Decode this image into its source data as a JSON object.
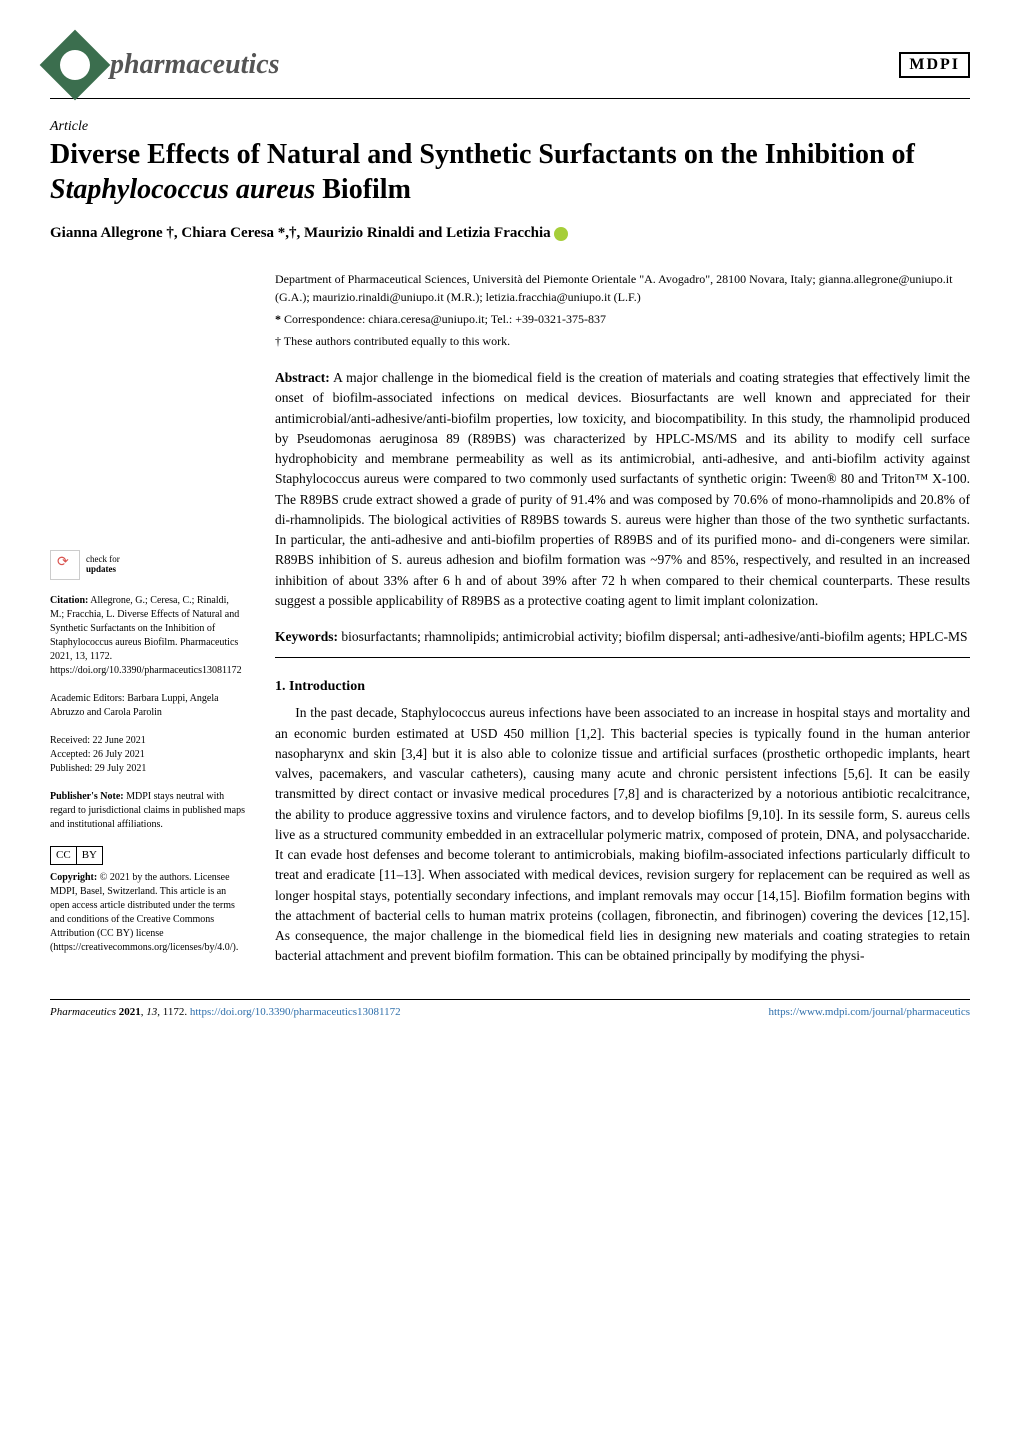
{
  "header": {
    "journal_name": "pharmaceutics",
    "publisher_logo": "MDPI"
  },
  "article": {
    "type": "Article",
    "title_pre": "Diverse Effects of Natural and Synthetic Surfactants on the Inhibition of ",
    "title_species": "Staphylococcus aureus",
    "title_post": " Biofilm",
    "authors": "Gianna Allegrone †, Chiara Ceresa *,†, Maurizio Rinaldi and Letizia Fracchia",
    "affiliation": "Department of Pharmaceutical Sciences, Università del Piemonte Orientale \"A. Avogadro\", 28100 Novara, Italy; gianna.allegrone@uniupo.it (G.A.); maurizio.rinaldi@uniupo.it (M.R.); letizia.fracchia@uniupo.it (L.F.)",
    "correspondence": "Correspondence: chiara.ceresa@uniupo.it; Tel.: +39-0321-375-837",
    "equal_contribution": "These authors contributed equally to this work.",
    "abstract_label": "Abstract:",
    "abstract_text": " A major challenge in the biomedical field is the creation of materials and coating strategies that effectively limit the onset of biofilm-associated infections on medical devices. Biosurfactants are well known and appreciated for their antimicrobial/anti-adhesive/anti-biofilm properties, low toxicity, and biocompatibility. In this study, the rhamnolipid produced by Pseudomonas aeruginosa 89 (R89BS) was characterized by HPLC-MS/MS and its ability to modify cell surface hydrophobicity and membrane permeability as well as its antimicrobial, anti-adhesive, and anti-biofilm activity against Staphylococcus aureus were compared to two commonly used surfactants of synthetic origin: Tween® 80 and Triton™ X-100. The R89BS crude extract showed a grade of purity of 91.4% and was composed by 70.6% of mono-rhamnolipids and 20.8% of di-rhamnolipids. The biological activities of R89BS towards S. aureus were higher than those of the two synthetic surfactants. In particular, the anti-adhesive and anti-biofilm properties of R89BS and of its purified mono- and di-congeners were similar. R89BS inhibition of S. aureus adhesion and biofilm formation was ~97% and 85%, respectively, and resulted in an increased inhibition of about 33% after 6 h and of about 39% after 72 h when compared to their chemical counterparts. These results suggest a possible applicability of R89BS as a protective coating agent to limit implant colonization.",
    "keywords_label": "Keywords:",
    "keywords_text": " biosurfactants; rhamnolipids; antimicrobial activity; biofilm dispersal; anti-adhesive/anti-biofilm agents; HPLC-MS"
  },
  "sidebar": {
    "check_updates": "check for updates",
    "citation_label": "Citation:",
    "citation_text": " Allegrone, G.; Ceresa, C.; Rinaldi, M.; Fracchia, L. Diverse Effects of Natural and Synthetic Surfactants on the Inhibition of Staphylococcus aureus Biofilm. Pharmaceutics 2021, 13, 1172. https://doi.org/10.3390/pharmaceutics13081172",
    "editors": "Academic Editors: Barbara Luppi, Angela Abruzzo and Carola Parolin",
    "received": "Received: 22 June 2021",
    "accepted": "Accepted: 26 July 2021",
    "published": "Published: 29 July 2021",
    "publisher_note_label": "Publisher's Note:",
    "publisher_note_text": " MDPI stays neutral with regard to jurisdictional claims in published maps and institutional affiliations.",
    "cc_1": "CC",
    "cc_2": "BY",
    "copyright_label": "Copyright:",
    "copyright_text": " © 2021 by the authors. Licensee MDPI, Basel, Switzerland. This article is an open access article distributed under the terms and conditions of the Creative Commons Attribution (CC BY) license (https://creativecommons.org/licenses/by/4.0/)."
  },
  "section": {
    "title": "1. Introduction",
    "body": "In the past decade, Staphylococcus aureus infections have been associated to an increase in hospital stays and mortality and an economic burden estimated at USD 450 million [1,2]. This bacterial species is typically found in the human anterior nasopharynx and skin [3,4] but it is also able to colonize tissue and artificial surfaces (prosthetic orthopedic implants, heart valves, pacemakers, and vascular catheters), causing many acute and chronic persistent infections [5,6]. It can be easily transmitted by direct contact or invasive medical procedures [7,8] and is characterized by a notorious antibiotic recalcitrance, the ability to produce aggressive toxins and virulence factors, and to develop biofilms [9,10]. In its sessile form, S. aureus cells live as a structured community embedded in an extracellular polymeric matrix, composed of protein, DNA, and polysaccharide. It can evade host defenses and become tolerant to antimicrobials, making biofilm-associated infections particularly difficult to treat and eradicate [11–13]. When associated with medical devices, revision surgery for replacement can be required as well as longer hospital stays, potentially secondary infections, and implant removals may occur [14,15]. Biofilm formation begins with the attachment of bacterial cells to human matrix proteins (collagen, fibronectin, and fibrinogen) covering the devices [12,15]. As consequence, the major challenge in the biomedical field lies in designing new materials and coating strategies to retain bacterial attachment and prevent biofilm formation. This can be obtained principally by modifying the physi-"
  },
  "footer": {
    "left_pre": "Pharmaceutics ",
    "left_year": "2021",
    "left_rest": ", 13, 1172. https://doi.org/10.3390/pharmaceutics13081172",
    "right": "https://www.mdpi.com/journal/pharmaceutics"
  },
  "colors": {
    "link": "#2f6fab",
    "journal_icon": "#3b6e4e",
    "orcid": "#a6ce39"
  }
}
